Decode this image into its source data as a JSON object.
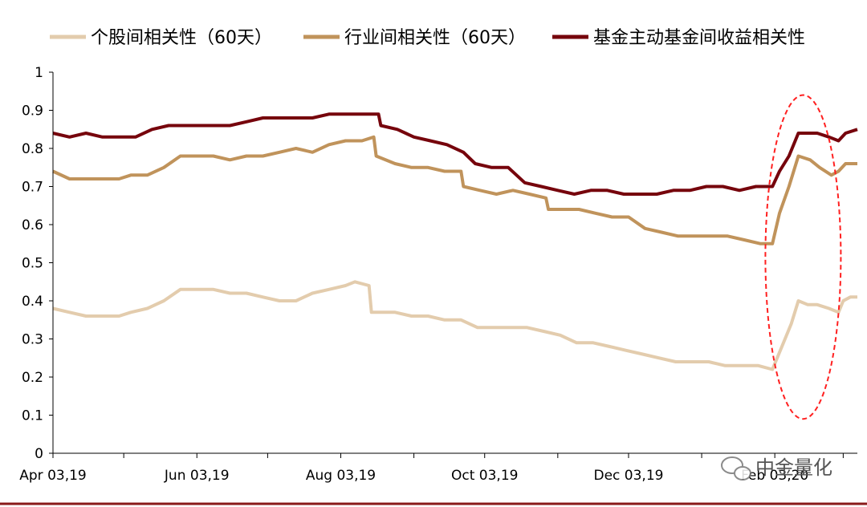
{
  "chart_data": {
    "type": "line",
    "title": "",
    "xlabel": "",
    "ylabel": "",
    "ylim": [
      0,
      1
    ],
    "yticks": [
      0,
      0.1,
      0.2,
      0.3,
      0.4,
      0.5,
      0.6,
      0.7,
      0.8,
      0.9,
      1
    ],
    "ytick_labels": [
      "0",
      "0.1",
      "0.2",
      "0.3",
      "0.4",
      "0.5",
      "0.6",
      "0.7",
      "0.8",
      "0.9",
      "1"
    ],
    "xlim": [
      "2019-04-03",
      "2020-03-09"
    ],
    "xticks": [
      "2019-04-03",
      "2019-06-03",
      "2019-08-03",
      "2019-10-03",
      "2019-12-03",
      "2020-02-03"
    ],
    "xtick_labels": [
      "Apr 03,19",
      "Jun 03,19",
      "Aug 03,19",
      "Oct 03,19",
      "Dec 03,19",
      "Feb 03,20"
    ],
    "legend_position": "top",
    "grid": false,
    "series": [
      {
        "name": "个股间相关性（60天）",
        "color": "#e3ccad",
        "points": [
          [
            "2019-04-03",
            0.38
          ],
          [
            "2019-04-10",
            0.37
          ],
          [
            "2019-04-17",
            0.36
          ],
          [
            "2019-04-24",
            0.36
          ],
          [
            "2019-05-01",
            0.36
          ],
          [
            "2019-05-06",
            0.37
          ],
          [
            "2019-05-13",
            0.38
          ],
          [
            "2019-05-20",
            0.4
          ],
          [
            "2019-05-27",
            0.43
          ],
          [
            "2019-06-03",
            0.43
          ],
          [
            "2019-06-10",
            0.43
          ],
          [
            "2019-06-17",
            0.42
          ],
          [
            "2019-06-24",
            0.42
          ],
          [
            "2019-07-01",
            0.41
          ],
          [
            "2019-07-08",
            0.4
          ],
          [
            "2019-07-15",
            0.4
          ],
          [
            "2019-07-22",
            0.42
          ],
          [
            "2019-07-29",
            0.43
          ],
          [
            "2019-08-05",
            0.44
          ],
          [
            "2019-08-09",
            0.45
          ],
          [
            "2019-08-15",
            0.44
          ],
          [
            "2019-08-16",
            0.37
          ],
          [
            "2019-08-26",
            0.37
          ],
          [
            "2019-09-02",
            0.36
          ],
          [
            "2019-09-09",
            0.36
          ],
          [
            "2019-09-16",
            0.35
          ],
          [
            "2019-09-23",
            0.35
          ],
          [
            "2019-09-30",
            0.33
          ],
          [
            "2019-10-07",
            0.33
          ],
          [
            "2019-10-14",
            0.33
          ],
          [
            "2019-10-21",
            0.33
          ],
          [
            "2019-10-28",
            0.32
          ],
          [
            "2019-11-04",
            0.31
          ],
          [
            "2019-11-11",
            0.29
          ],
          [
            "2019-11-18",
            0.29
          ],
          [
            "2019-11-25",
            0.28
          ],
          [
            "2019-12-02",
            0.27
          ],
          [
            "2019-12-09",
            0.26
          ],
          [
            "2019-12-16",
            0.25
          ],
          [
            "2019-12-23",
            0.24
          ],
          [
            "2019-12-30",
            0.24
          ],
          [
            "2020-01-06",
            0.24
          ],
          [
            "2020-01-13",
            0.23
          ],
          [
            "2020-01-20",
            0.23
          ],
          [
            "2020-01-27",
            0.23
          ],
          [
            "2020-02-02",
            0.22
          ],
          [
            "2020-02-06",
            0.28
          ],
          [
            "2020-02-10",
            0.34
          ],
          [
            "2020-02-13",
            0.4
          ],
          [
            "2020-02-17",
            0.39
          ],
          [
            "2020-02-21",
            0.39
          ],
          [
            "2020-02-26",
            0.38
          ],
          [
            "2020-03-01",
            0.37
          ],
          [
            "2020-03-03",
            0.4
          ],
          [
            "2020-03-06",
            0.41
          ],
          [
            "2020-03-09",
            0.41
          ]
        ]
      },
      {
        "name": "行业间相关性（60天）",
        "color": "#c0935b",
        "points": [
          [
            "2019-04-03",
            0.74
          ],
          [
            "2019-04-10",
            0.72
          ],
          [
            "2019-04-17",
            0.72
          ],
          [
            "2019-04-24",
            0.72
          ],
          [
            "2019-05-01",
            0.72
          ],
          [
            "2019-05-06",
            0.73
          ],
          [
            "2019-05-13",
            0.73
          ],
          [
            "2019-05-20",
            0.75
          ],
          [
            "2019-05-27",
            0.78
          ],
          [
            "2019-06-03",
            0.78
          ],
          [
            "2019-06-10",
            0.78
          ],
          [
            "2019-06-17",
            0.77
          ],
          [
            "2019-06-24",
            0.78
          ],
          [
            "2019-07-01",
            0.78
          ],
          [
            "2019-07-08",
            0.79
          ],
          [
            "2019-07-15",
            0.8
          ],
          [
            "2019-07-22",
            0.79
          ],
          [
            "2019-07-29",
            0.81
          ],
          [
            "2019-08-05",
            0.82
          ],
          [
            "2019-08-12",
            0.82
          ],
          [
            "2019-08-17",
            0.83
          ],
          [
            "2019-08-18",
            0.78
          ],
          [
            "2019-08-26",
            0.76
          ],
          [
            "2019-09-02",
            0.75
          ],
          [
            "2019-09-09",
            0.75
          ],
          [
            "2019-09-16",
            0.74
          ],
          [
            "2019-09-23",
            0.74
          ],
          [
            "2019-09-24",
            0.7
          ],
          [
            "2019-10-01",
            0.69
          ],
          [
            "2019-10-08",
            0.68
          ],
          [
            "2019-10-15",
            0.69
          ],
          [
            "2019-10-22",
            0.68
          ],
          [
            "2019-10-29",
            0.67
          ],
          [
            "2019-10-30",
            0.64
          ],
          [
            "2019-11-05",
            0.64
          ],
          [
            "2019-11-12",
            0.64
          ],
          [
            "2019-11-19",
            0.63
          ],
          [
            "2019-11-26",
            0.62
          ],
          [
            "2019-12-03",
            0.62
          ],
          [
            "2019-12-10",
            0.59
          ],
          [
            "2019-12-17",
            0.58
          ],
          [
            "2019-12-24",
            0.57
          ],
          [
            "2019-12-31",
            0.57
          ],
          [
            "2020-01-07",
            0.57
          ],
          [
            "2020-01-14",
            0.57
          ],
          [
            "2020-01-21",
            0.56
          ],
          [
            "2020-01-28",
            0.55
          ],
          [
            "2020-02-02",
            0.55
          ],
          [
            "2020-02-05",
            0.63
          ],
          [
            "2020-02-09",
            0.7
          ],
          [
            "2020-02-13",
            0.78
          ],
          [
            "2020-02-18",
            0.77
          ],
          [
            "2020-02-22",
            0.75
          ],
          [
            "2020-02-27",
            0.73
          ],
          [
            "2020-03-01",
            0.74
          ],
          [
            "2020-03-04",
            0.76
          ],
          [
            "2020-03-09",
            0.76
          ]
        ]
      },
      {
        "name": "基金主动基金间收益相关性",
        "color": "#76040c",
        "points": [
          [
            "2019-04-03",
            0.84
          ],
          [
            "2019-04-10",
            0.83
          ],
          [
            "2019-04-17",
            0.84
          ],
          [
            "2019-04-24",
            0.83
          ],
          [
            "2019-05-01",
            0.83
          ],
          [
            "2019-05-08",
            0.83
          ],
          [
            "2019-05-15",
            0.85
          ],
          [
            "2019-05-22",
            0.86
          ],
          [
            "2019-05-29",
            0.86
          ],
          [
            "2019-06-03",
            0.86
          ],
          [
            "2019-06-10",
            0.86
          ],
          [
            "2019-06-17",
            0.86
          ],
          [
            "2019-06-24",
            0.87
          ],
          [
            "2019-07-01",
            0.88
          ],
          [
            "2019-07-08",
            0.88
          ],
          [
            "2019-07-15",
            0.88
          ],
          [
            "2019-07-22",
            0.88
          ],
          [
            "2019-07-29",
            0.89
          ],
          [
            "2019-08-05",
            0.89
          ],
          [
            "2019-08-12",
            0.89
          ],
          [
            "2019-08-19",
            0.89
          ],
          [
            "2019-08-20",
            0.86
          ],
          [
            "2019-08-27",
            0.85
          ],
          [
            "2019-09-03",
            0.83
          ],
          [
            "2019-09-10",
            0.82
          ],
          [
            "2019-09-17",
            0.81
          ],
          [
            "2019-09-24",
            0.79
          ],
          [
            "2019-09-29",
            0.76
          ],
          [
            "2019-10-06",
            0.75
          ],
          [
            "2019-10-13",
            0.75
          ],
          [
            "2019-10-20",
            0.71
          ],
          [
            "2019-10-27",
            0.7
          ],
          [
            "2019-11-03",
            0.69
          ],
          [
            "2019-11-10",
            0.68
          ],
          [
            "2019-11-17",
            0.69
          ],
          [
            "2019-11-24",
            0.69
          ],
          [
            "2019-12-01",
            0.68
          ],
          [
            "2019-12-08",
            0.68
          ],
          [
            "2019-12-15",
            0.68
          ],
          [
            "2019-12-22",
            0.69
          ],
          [
            "2019-12-29",
            0.69
          ],
          [
            "2020-01-05",
            0.7
          ],
          [
            "2020-01-12",
            0.7
          ],
          [
            "2020-01-19",
            0.69
          ],
          [
            "2020-01-26",
            0.7
          ],
          [
            "2020-02-02",
            0.7
          ],
          [
            "2020-02-05",
            0.74
          ],
          [
            "2020-02-09",
            0.78
          ],
          [
            "2020-02-13",
            0.84
          ],
          [
            "2020-02-17",
            0.84
          ],
          [
            "2020-02-21",
            0.84
          ],
          [
            "2020-02-26",
            0.83
          ],
          [
            "2020-03-01",
            0.82
          ],
          [
            "2020-03-04",
            0.84
          ],
          [
            "2020-03-09",
            0.85
          ]
        ]
      }
    ],
    "annotations": [
      {
        "type": "ellipse",
        "style": "dashed",
        "color": "#ff2020",
        "x_center": "2020-02-15",
        "y_range": [
          0.09,
          0.94
        ]
      }
    ]
  },
  "watermark": {
    "text": "中金量化",
    "icon": "wechat-icon"
  }
}
